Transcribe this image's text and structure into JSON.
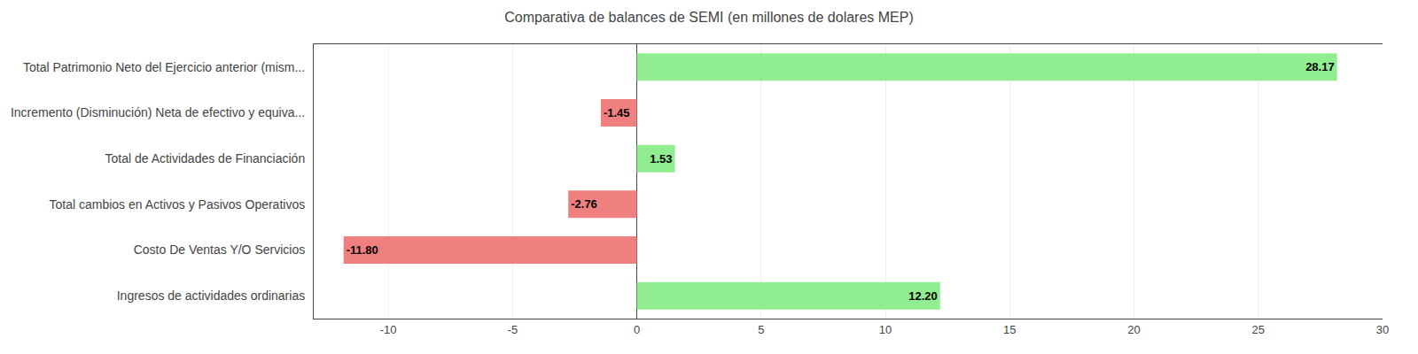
{
  "chart_data": {
    "type": "bar",
    "orientation": "horizontal",
    "title": "Comparativa de balances de SEMI (en millones de dolares MEP)",
    "categories": [
      "Total Patrimonio Neto del Ejercicio anterior (mism...",
      "Incremento (Disminución) Neta de efectivo y equiva...",
      "Total de Actividades de Financiación",
      "Total cambios en Activos y Pasivos Operativos",
      "Costo De Ventas Y/O Servicios",
      "Ingresos de actividades ordinarias"
    ],
    "values": [
      28.17,
      -1.45,
      1.53,
      -2.76,
      -11.8,
      12.2
    ],
    "value_labels": [
      "28.17",
      "-1.45",
      "1.53",
      "-2.76",
      "-11.80",
      "12.20"
    ],
    "colors": [
      "#90EE90",
      "#F08080",
      "#90EE90",
      "#F08080",
      "#F08080",
      "#90EE90"
    ],
    "xlim": [
      -13,
      30
    ],
    "xticks": [
      -10,
      -5,
      0,
      5,
      10,
      15,
      20,
      25,
      30
    ],
    "grid": true,
    "data_labels": true
  }
}
